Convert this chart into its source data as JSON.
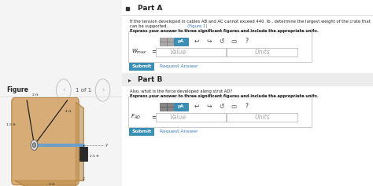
{
  "bg_color": "#f4f4f4",
  "left_bg": "#ffffff",
  "right_bg": "#f4f4f4",
  "part_a_header": "Part A",
  "part_b_header": "Part B",
  "problem_text_a1": "If the tension developed in cables AB and AC cannot exceed 440  lb , determine the largest weight of the crate that",
  "problem_text_a2": "can be supported. (Figure 1)",
  "express_text": "Express your answer to three significant figures and include the appropriate units.",
  "part_b_problem": "Also, what is the force developed along strut AD?",
  "figure_label": "Figure",
  "figure_nav": "1 of 1",
  "submit_color": "#3a8fb5",
  "submit_text": "Submit",
  "request_text": "Request Answer",
  "link_color": "#3a7bbf",
  "toolbar_gray": "#9a9a9a",
  "toolbar_blue": "#3a8fb5",
  "input_border": "#bbbbbb",
  "panel_color": "#d4a46a",
  "panel_edge": "#b08040",
  "cable_color": "#222222",
  "strut_color": "#6a9fcc",
  "weight_color": "#2a2a2a",
  "anchor_color": "#cccccc",
  "text_dark": "#222222",
  "text_gray": "#999999",
  "part_b_bg": "#ebebeb",
  "sep_color": "#dddddd"
}
